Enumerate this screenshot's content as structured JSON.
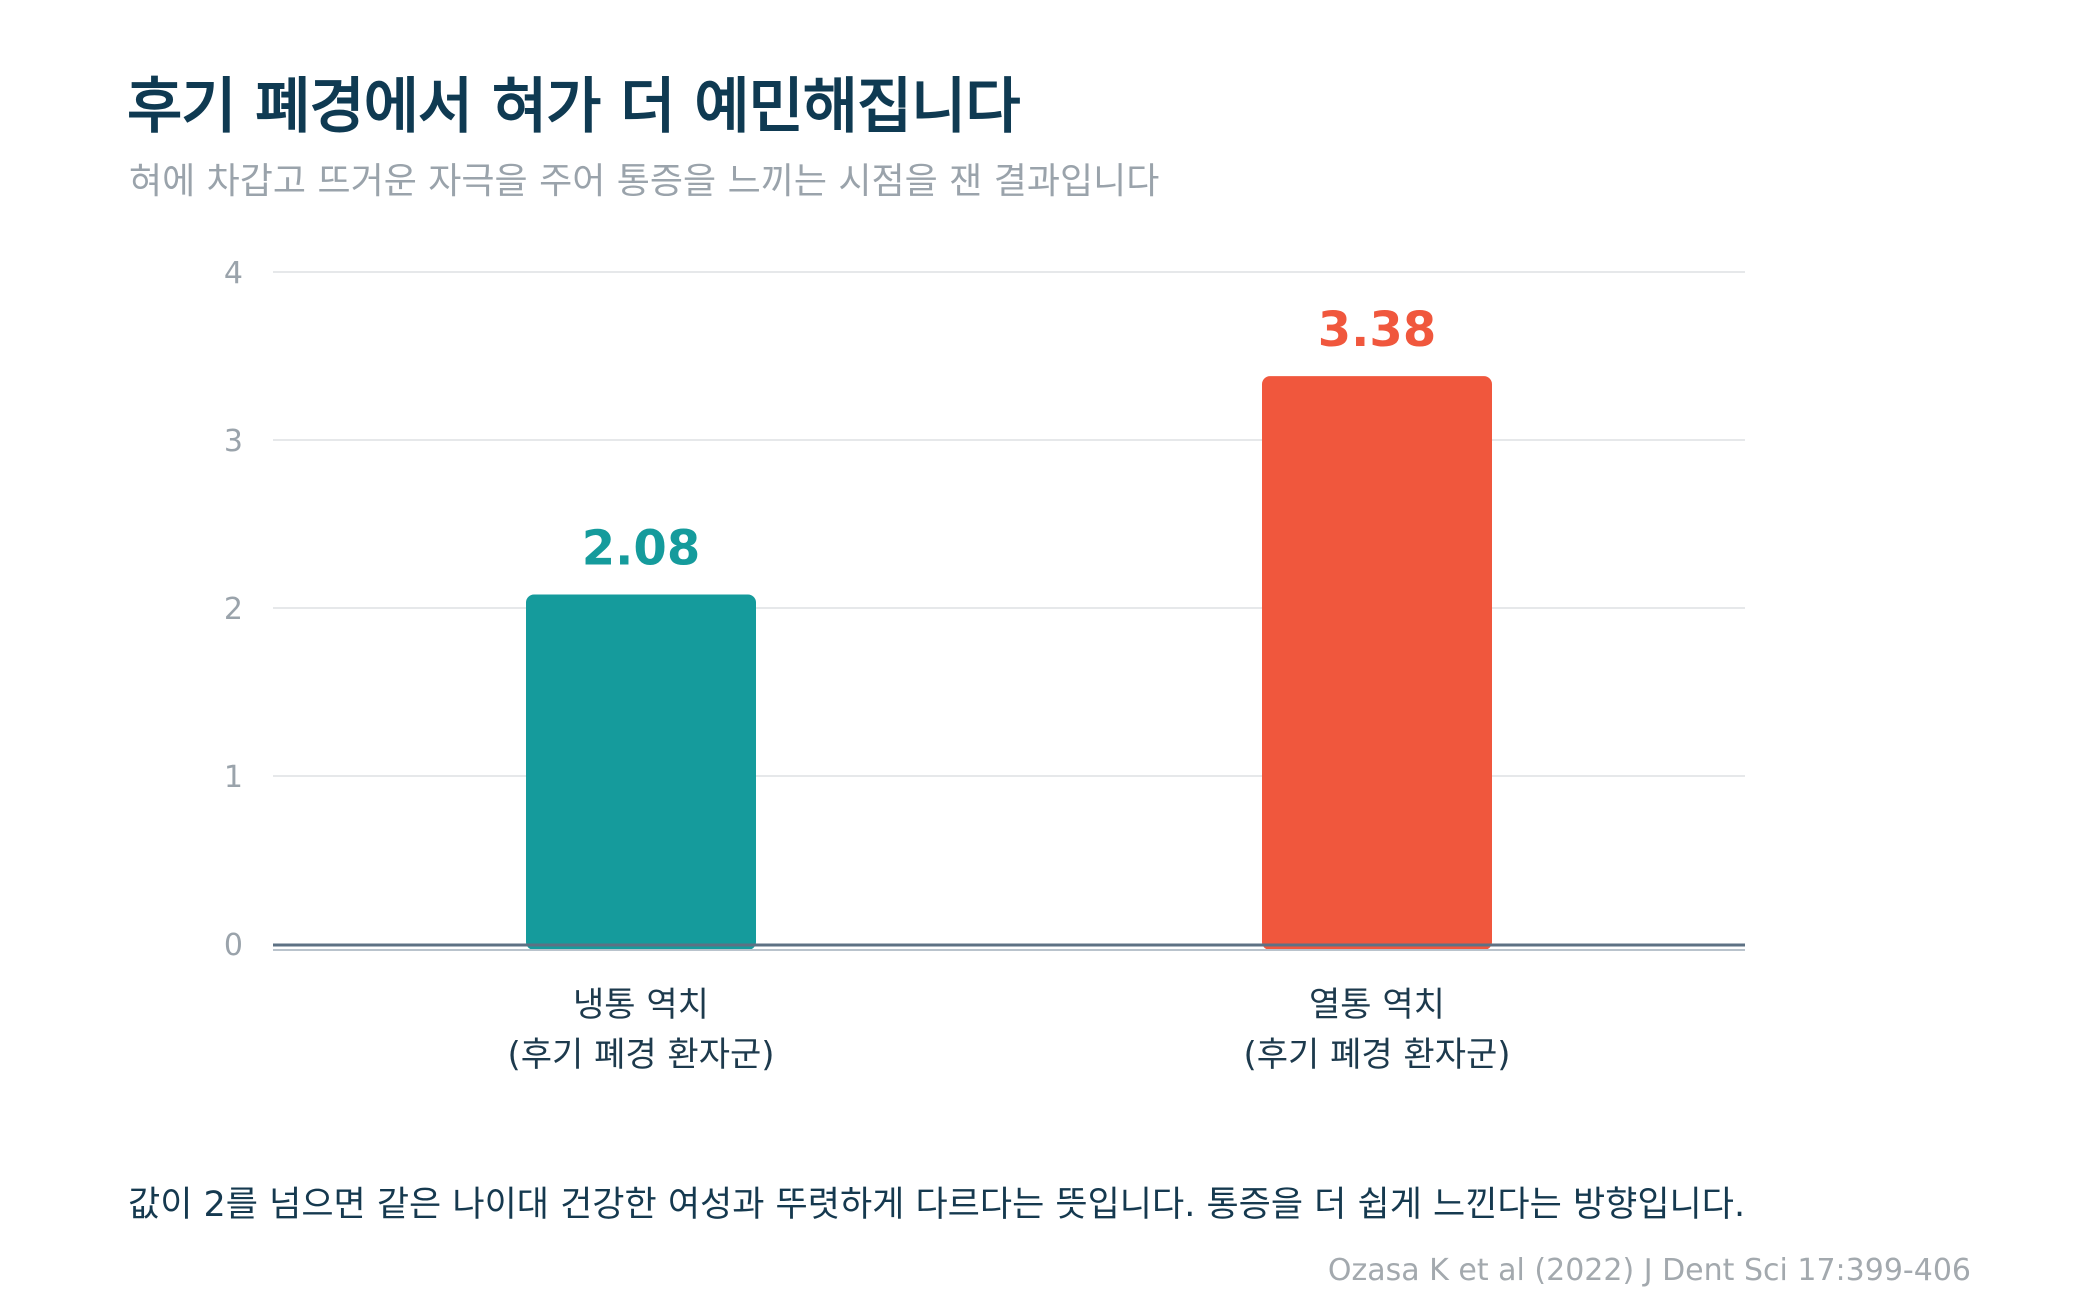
{
  "title": "후기 폐경에서 혀가 더 예민해집니다",
  "subtitle": "혀에 차갑고 뜨거운 자극을 주어 통증을 느끼는 시점을 잰 결과입니다",
  "chart_data": {
    "type": "bar",
    "categories": [
      [
        "냉통 역치",
        "(후기 폐경 환자군)"
      ],
      [
        "열통 역치",
        "(후기 폐경 환자군)"
      ]
    ],
    "values": [
      2.08,
      3.38
    ],
    "value_labels": [
      "2.08",
      "3.38"
    ],
    "colors": [
      "#159b9c",
      "#f0573d"
    ],
    "ylim": [
      0,
      4
    ],
    "yticks": [
      0,
      1,
      2,
      3,
      4
    ],
    "ytick_labels": [
      "0",
      "1",
      "2",
      "3",
      "4"
    ],
    "grid": true,
    "xlabel": "",
    "ylabel": ""
  },
  "note": "값이 2를 넘으면 같은 나이대 건강한 여성과 뚜렷하게 다르다는 뜻입니다. 통증을 더 쉽게 느낀다는 방향입니다.",
  "source": "Ozasa K et al (2022) J Dent Sci 17:399-406"
}
